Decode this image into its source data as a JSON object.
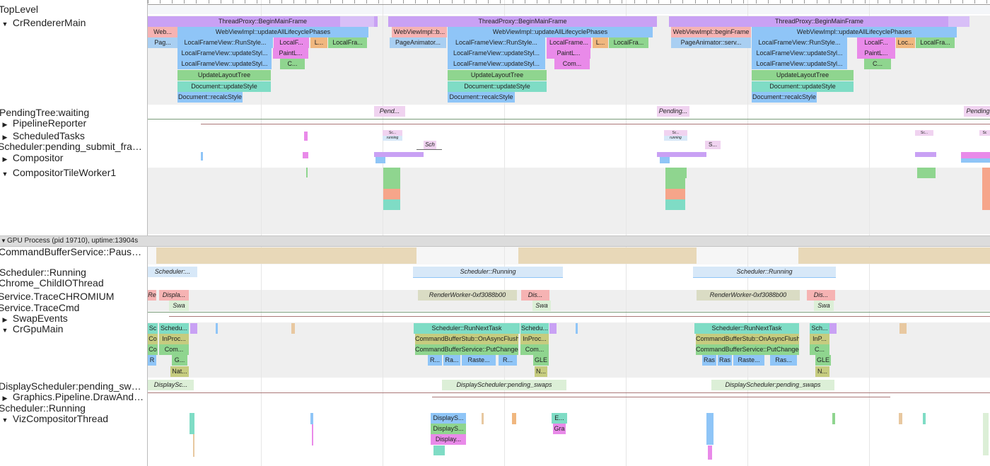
{
  "rows": {
    "toplevel": "TopLevel",
    "cr_renderer_main": "CrRendererMain",
    "pending_tree": "PendingTree:waiting",
    "pipeline_reporter": "PipelineReporter",
    "scheduled_tasks": "ScheduledTasks",
    "scheduler_pending": "Scheduler:pending_submit_fra…",
    "compositor": "Compositor",
    "compositor_tile_worker": "CompositorTileWorker1",
    "command_buffer_service": "CommandBufferService::Pause…",
    "scheduler_running": "Scheduler::Running",
    "chrome_child_io": "Chrome_ChildIOThread",
    "service_trace_chromium": "Service.TraceCHROMIUM",
    "service_trace_cmd": "Service.TraceCmd",
    "swap_events": "SwapEvents",
    "cr_gpu_main": "CrGpuMain",
    "display_scheduler": "DisplayScheduler:pending_swaps",
    "graphics_pipeline": "Graphics.Pipeline.DrawAndSw",
    "scheduler_running_2": "Scheduler::Running",
    "viz_compositor": "VizCompositorThread"
  },
  "gpu_process_header": "GPU Process (pid 19710), uptime:13904s",
  "colors": {
    "purple": "#c9a1f4",
    "pink": "#f6b3b3",
    "blue": "#8fc5f7",
    "magenta": "#e98ae9",
    "orange": "#f0b77f",
    "green": "#8fd58f",
    "teal": "#7fdcc5",
    "tan": "#e8d8b8",
    "lightblue": "#d7e8f8",
    "lightgreen": "#dcefd7",
    "olive": "#dadcc4"
  },
  "slices": {
    "tp1": "ThreadProxy::BeginMainFrame",
    "tp2": "ThreadProxy::BeginMainFrame",
    "tp3": "ThreadProxy::BeginMainFrame",
    "web1": "Web...",
    "wv1": "WebViewImpl::updateAllLifecyclePhases",
    "wvb2": "WebViewImpl::b...",
    "wv2": "WebViewImpl::updateAllLifecyclePhases",
    "wvbf3": "WebViewImpl::beginFrame",
    "wv3": "WebViewImpl::updateAllLifecyclePhases",
    "pag1": "Pag...",
    "rs1": "LocalFrameView::RunStyle...",
    "lf1a": "LocalF...",
    "l1": "L...",
    "lfa1": "LocalFra...",
    "pa2": "PageAnimator...",
    "rs2": "LocalFrameView::RunStyle...",
    "lfr2": "LocalFrame...",
    "l2": "L...",
    "lfa2": "LocalFra...",
    "pa3": "PageAnimator::serv...",
    "rs3": "LocalFrameView::RunStyle...",
    "lf3a": "LocalF...",
    "loc3": "Loc...",
    "lfa3": "LocalFra...",
    "us1": "LocalFrameView::updateStyl...",
    "pl1": "PaintL...",
    "us2": "LocalFrameView::updateStyl...",
    "pl2": "PaintL...",
    "us3": "LocalFrameView::updateStyl...",
    "pl3": "PaintL...",
    "us1b": "LocalFrameView::updateStyl...",
    "c1": "C...",
    "us2b": "LocalFrameView::updateStyl...",
    "com2": "Com...",
    "us3b": "LocalFrameView::updateStyl...",
    "c3": "C...",
    "ult1": "UpdateLayoutTree",
    "ult2": "UpdateLayoutTree",
    "ult3": "UpdateLayoutTree",
    "dus1": "Document::updateStyle",
    "dus2": "Document::updateStyle",
    "dus3": "Document::updateStyle",
    "drs1": "Document::recalcStyle",
    "drs2": "Document::recalcStyle",
    "drs3": "Document::recalcStyle",
    "pend1": "Pend...",
    "pend2": "Pending...",
    "pend3": "Pending",
    "sc1": "Sc...",
    "run1": "running",
    "sc2": "Sc...",
    "run2": "running",
    "sc3": "Sc...",
    "sc4": "Sc",
    "sch1": "Sch",
    "s2": "S...",
    "schr1": "Scheduler:...",
    "schr2": "Scheduler::Running",
    "schr3": "Scheduler::Running",
    "re": "Re",
    "displa": "Displa...",
    "rw1": "RenderWorker-0xf3088b00",
    "dis1": "Dis...",
    "rw2": "RenderWorker-0xf3088b00",
    "dis2": "Dis...",
    "swa1": "Swa",
    "swa2": "Swa",
    "swa3": "Swa",
    "g_sc": "Sc",
    "g_schedu1": "Schedu...",
    "g_rnt1": "Scheduler::RunNextTask",
    "g_schedu2": "Schedu...",
    "g_rnt2": "Scheduler::RunNextTask",
    "g_sch3": "Sch...",
    "g_co1": "Co",
    "g_inproc1": "InProc...",
    "g_oaf1": "CommandBufferStub::OnAsyncFlush",
    "g_inproc2": "InProc...",
    "g_oaf2": "CommandBufferStub::OnAsyncFlush",
    "g_inp3": "InP...",
    "g_co2": "Co",
    "g_com1": "Com...",
    "g_pc1": "CommandBufferService::PutChanged",
    "g_com2": "Com...",
    "g_pc2": "CommandBufferService::PutChanged",
    "g_c3": "C...",
    "g_r1": "R",
    "g_g1": "G...",
    "g_r2": "R...",
    "g_ra2": "Ra...",
    "g_raste2": "Raste...",
    "g_r2b": "R...",
    "g_gle2": "GLE",
    "g_ras3": "Ras",
    "g_ras3b": "Ras",
    "g_raste3": "Raste...",
    "g_ra3": "Ras...",
    "g_gle3": "GLE",
    "g_nat": "Nat...",
    "g_n2": "N...",
    "g_n3": "N...",
    "ds1": "DisplaySc...",
    "ds2": "DisplayScheduler:pending_swaps",
    "ds3": "DisplayScheduler:pending_swaps",
    "v_disp1": "DisplayS...",
    "v_e": "E...",
    "v_disp2": "DisplayS...",
    "v_gra": "Gra",
    "v_disp3": "Display..."
  }
}
